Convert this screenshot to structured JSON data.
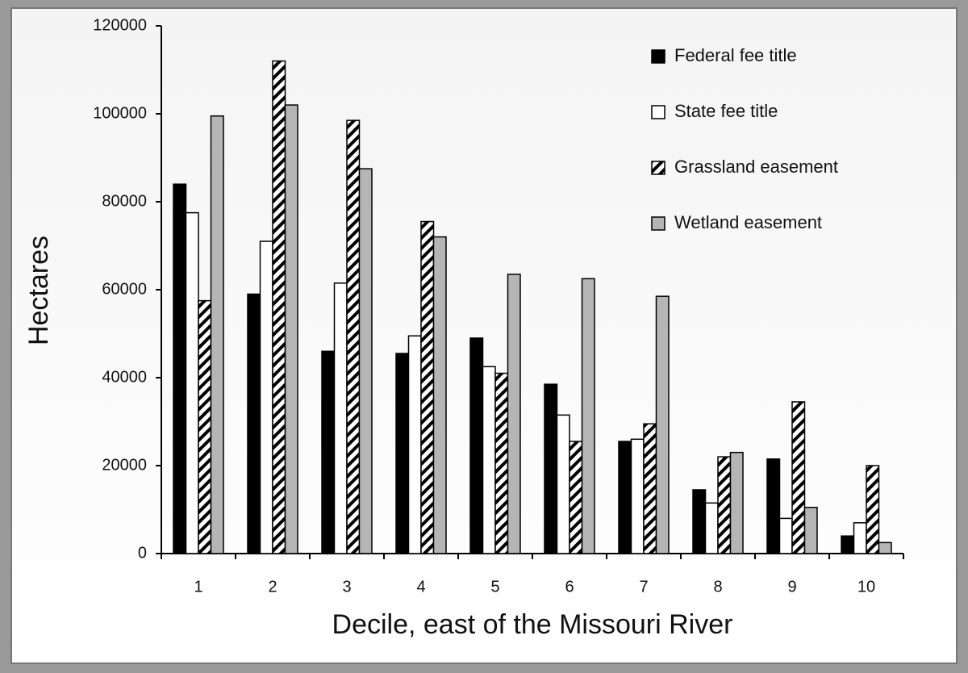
{
  "chart_data": {
    "type": "bar",
    "x_label": "Decile, east of the Missouri River",
    "y_label": "Hectares",
    "categories": [
      "1",
      "2",
      "3",
      "4",
      "5",
      "6",
      "7",
      "8",
      "9",
      "10"
    ],
    "series": [
      {
        "name": "Federal fee title",
        "color": "#000000",
        "pattern": "solid",
        "values": [
          84000,
          59000,
          46000,
          45500,
          49000,
          38500,
          25500,
          14500,
          21500,
          4000
        ]
      },
      {
        "name": "State fee title",
        "color": "#ffffff",
        "pattern": "solid",
        "values": [
          77500,
          71000,
          61500,
          49500,
          42500,
          31500,
          26000,
          11500,
          8000,
          7000
        ]
      },
      {
        "name": "Grassland easement",
        "color": "#ffffff",
        "pattern": "hatch",
        "values": [
          57500,
          112000,
          98500,
          75500,
          41000,
          25500,
          29500,
          22000,
          34500,
          20000
        ]
      },
      {
        "name": "Wetland easement",
        "color": "#b5b5b5",
        "pattern": "solid",
        "values": [
          99500,
          102000,
          87500,
          72000,
          63500,
          62500,
          58500,
          23000,
          10500,
          2500
        ]
      }
    ],
    "ylim": [
      0,
      120000
    ],
    "yticks": [
      0,
      20000,
      40000,
      60000,
      80000,
      100000,
      120000
    ],
    "grid": false,
    "legend": "upper right"
  }
}
